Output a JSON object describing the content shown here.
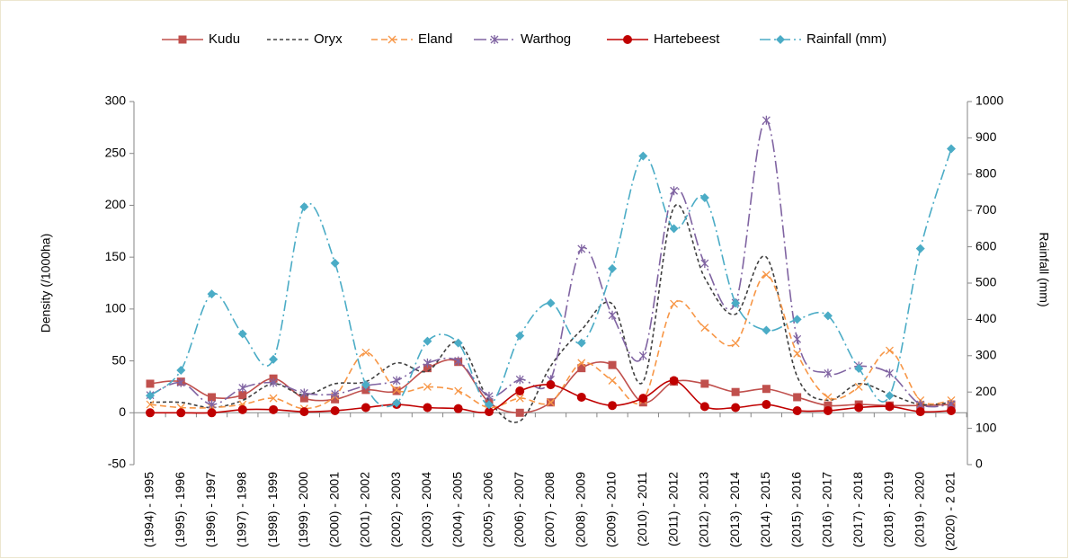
{
  "chart_data": {
    "type": "line",
    "y_label": "Density (/1000ha)",
    "y2_label": "Rainfall (mm)",
    "categories": [
      "(1994) - 1995",
      "(1995) - 1996",
      "(1996) - 1997",
      "(1997) - 1998",
      "(1998) - 1999",
      "(1999) - 2000",
      "(2000) - 2001",
      "(2001) - 2002",
      "(2002) - 2003",
      "(2003) - 2004",
      "(2004) - 2005",
      "(2005) - 2006",
      "(2006) - 2007",
      "(2007) - 2008",
      "(2008) - 2009",
      "(2009) - 2010",
      "(2010) - 2011",
      "(2011) - 2012",
      "(2012) - 2013",
      "(2013) - 2014",
      "(2014) - 2015",
      "(2015) - 2016",
      "(2016) - 2017",
      "(2017) - 2018",
      "(2018) - 2019",
      "(2019) - 2020",
      "(2020) - 2 021"
    ],
    "ylim": [
      -50,
      300
    ],
    "yticks": [
      -50,
      0,
      50,
      100,
      150,
      200,
      250,
      300
    ],
    "y2lim": [
      0,
      1000
    ],
    "y2ticks": [
      0,
      100,
      200,
      300,
      400,
      500,
      600,
      700,
      800,
      900,
      1000
    ],
    "legend": "top",
    "series": [
      {
        "name": "Kudu",
        "color": "#c0504d",
        "dash": "solid",
        "marker": "square",
        "values": [
          28,
          30,
          15,
          17,
          33,
          14,
          13,
          22,
          21,
          43,
          49,
          10,
          0,
          10,
          43,
          46,
          10,
          30,
          28,
          20,
          23,
          15,
          7,
          8,
          7,
          7,
          8
        ]
      },
      {
        "name": "Oryx",
        "color": "#404040",
        "dash": "short",
        "marker": "none",
        "values": [
          10,
          10,
          5,
          12,
          28,
          17,
          28,
          30,
          48,
          40,
          68,
          12,
          -8,
          45,
          80,
          105,
          30,
          198,
          130,
          95,
          150,
          35,
          12,
          28,
          18,
          8,
          10
        ]
      },
      {
        "name": "Eland",
        "color": "#f79646",
        "dash": "dash",
        "marker": "x",
        "values": [
          8,
          5,
          5,
          8,
          14,
          4,
          16,
          58,
          22,
          25,
          21,
          5,
          14,
          10,
          48,
          31,
          12,
          105,
          82,
          67,
          133,
          57,
          15,
          25,
          60,
          12,
          12
        ]
      },
      {
        "name": "Warthog",
        "color": "#8064a2",
        "dash": "longdashdot",
        "marker": "star",
        "values": [
          17,
          29,
          8,
          24,
          29,
          19,
          18,
          26,
          31,
          48,
          50,
          16,
          32,
          32,
          158,
          94,
          55,
          214,
          144,
          106,
          282,
          71,
          38,
          45,
          38,
          8,
          8
        ]
      },
      {
        "name": "Hartebeest",
        "color": "#c00000",
        "dash": "solid",
        "marker": "circle",
        "values": [
          0,
          0,
          0,
          3,
          3,
          1,
          2,
          5,
          8,
          5,
          4,
          1,
          21,
          27,
          15,
          7,
          14,
          31,
          6,
          5,
          8,
          2,
          2,
          5,
          6,
          1,
          2
        ]
      },
      {
        "name": "Rainfall (mm)",
        "color": "#4bacc6",
        "dash": "dashdot",
        "marker": "diamond",
        "axis": "y2",
        "values": [
          190,
          260,
          470,
          360,
          290,
          710,
          555,
          220,
          170,
          340,
          335,
          165,
          355,
          445,
          335,
          540,
          850,
          650,
          735,
          445,
          370,
          400,
          410,
          265,
          190,
          595,
          870
        ]
      }
    ]
  }
}
